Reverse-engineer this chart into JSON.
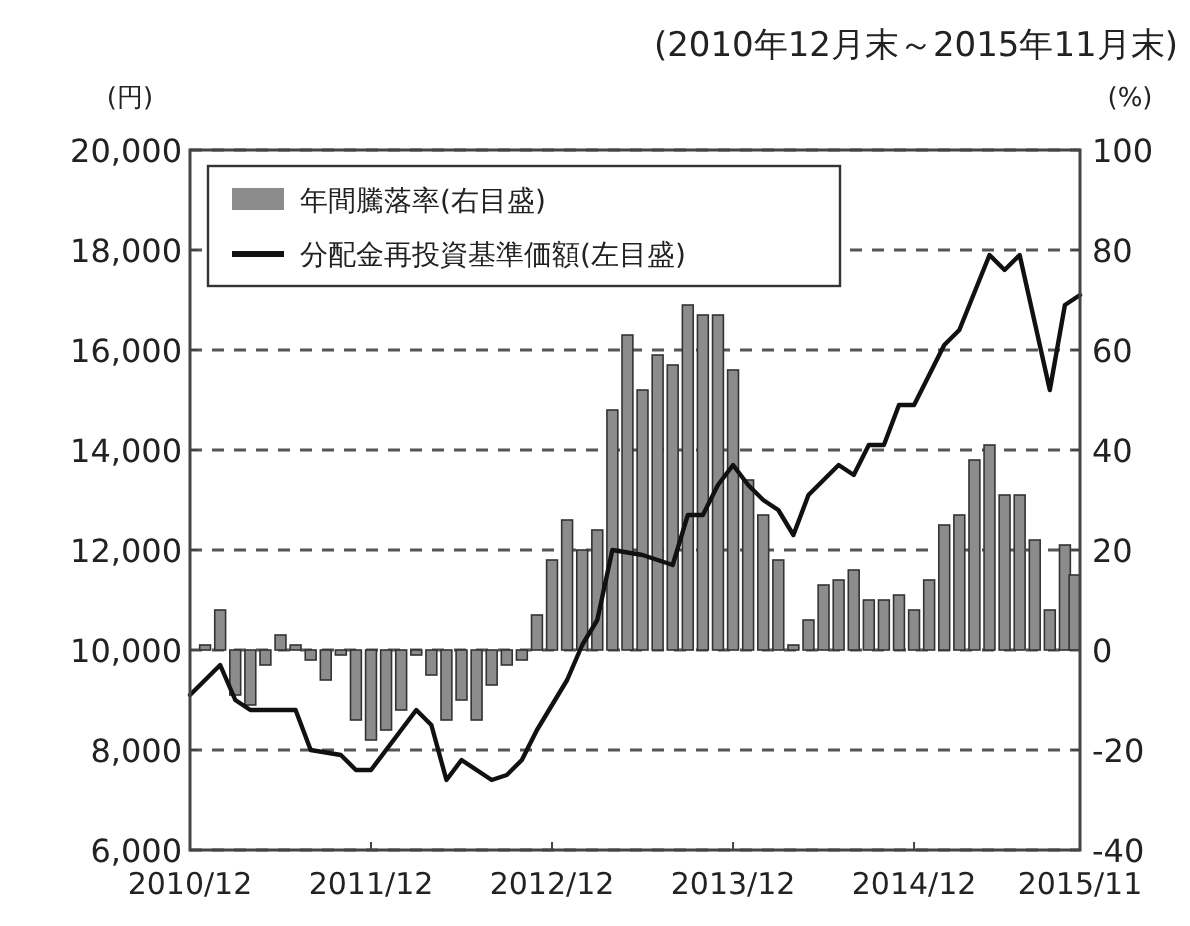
{
  "chart_data": {
    "type": "bar",
    "title": "(2010年12月末～2015年11月末)",
    "ylabel": "(円)",
    "y2label": "(%)",
    "xlim": [
      "2010-12",
      "2015-11"
    ],
    "xticks": [
      {
        "value": "2010-12",
        "label": "2010/12"
      },
      {
        "value": "2011-12",
        "label": "2011/12"
      },
      {
        "value": "2012-12",
        "label": "2012/12"
      },
      {
        "value": "2013-12",
        "label": "2013/12"
      },
      {
        "value": "2014-12",
        "label": "2014/12"
      },
      {
        "value": "2015-11",
        "label": "2015/11"
      }
    ],
    "ylim": [
      6000,
      20000
    ],
    "yticks": [
      {
        "value": 6000,
        "label": "6,000"
      },
      {
        "value": 8000,
        "label": "8,000"
      },
      {
        "value": 10000,
        "label": "10,000"
      },
      {
        "value": 12000,
        "label": "12,000"
      },
      {
        "value": 14000,
        "label": "14,000"
      },
      {
        "value": 16000,
        "label": "16,000"
      },
      {
        "value": 18000,
        "label": "18,000"
      },
      {
        "value": 20000,
        "label": "20,000"
      }
    ],
    "y2lim": [
      -40,
      100
    ],
    "y2ticks": [
      -40,
      -20,
      0,
      20,
      40,
      60,
      80,
      100
    ],
    "grid": "y",
    "legend": "top left",
    "series": [
      {
        "name": "年間騰落率(右目盛)",
        "axis": "y2",
        "color": "#8c8c8c",
        "x": [
          "2010-12",
          "2011-01",
          "2011-02",
          "2011-03",
          "2011-04",
          "2011-05",
          "2011-06",
          "2011-07",
          "2011-08",
          "2011-09",
          "2011-10",
          "2011-11",
          "2011-12",
          "2012-01",
          "2012-02",
          "2012-03",
          "2012-04",
          "2012-05",
          "2012-06",
          "2012-07",
          "2012-08",
          "2012-09",
          "2012-10",
          "2012-11",
          "2012-12",
          "2013-01",
          "2013-02",
          "2013-03",
          "2013-04",
          "2013-05",
          "2013-06",
          "2013-07",
          "2013-08",
          "2013-09",
          "2013-10",
          "2013-11",
          "2013-12",
          "2014-01",
          "2014-02",
          "2014-03",
          "2014-04",
          "2014-05",
          "2014-06",
          "2014-07",
          "2014-08",
          "2014-09",
          "2014-10",
          "2014-11",
          "2014-12",
          "2015-01",
          "2015-02",
          "2015-03",
          "2015-04",
          "2015-05",
          "2015-06",
          "2015-07",
          "2015-08",
          "2015-09",
          "2015-10",
          "2015-11"
        ],
        "values": [
          0,
          1,
          8,
          -9,
          -11,
          -3,
          3,
          1,
          -2,
          -6,
          -1,
          -14,
          -18,
          -16,
          -12,
          -1,
          -5,
          -14,
          -10,
          -14,
          -7,
          -3,
          -2,
          7,
          18,
          26,
          20,
          24,
          48,
          63,
          52,
          59,
          57,
          69,
          67,
          67,
          56,
          34,
          27,
          18,
          1,
          6,
          13,
          14,
          16,
          10,
          10,
          11,
          8,
          14,
          25,
          27,
          38,
          41,
          31,
          31,
          22,
          8,
          21,
          15
        ]
      },
      {
        "name": "分配金再投資基準価額(左目盛)",
        "type": "line",
        "axis": "y",
        "color": "#111111",
        "x": [
          "2010-12",
          "2011-02",
          "2011-03",
          "2011-04",
          "2011-06",
          "2011-07",
          "2011-08",
          "2011-10",
          "2011-11",
          "2011-12",
          "2012-02",
          "2012-03",
          "2012-04",
          "2012-05",
          "2012-06",
          "2012-08",
          "2012-09",
          "2012-10",
          "2012-11",
          "2013-01",
          "2013-02",
          "2013-03",
          "2013-04",
          "2013-06",
          "2013-07",
          "2013-08",
          "2013-09",
          "2013-10",
          "2013-11",
          "2013-12",
          "2014-01",
          "2014-02",
          "2014-03",
          "2014-04",
          "2014-05",
          "2014-07",
          "2014-08",
          "2014-09",
          "2014-10",
          "2014-11",
          "2014-12",
          "2015-02",
          "2015-03",
          "2015-05",
          "2015-06",
          "2015-07",
          "2015-09",
          "2015-10",
          "2015-11"
        ],
        "values": [
          9100,
          9700,
          9000,
          8800,
          8800,
          8800,
          8000,
          7900,
          7600,
          7600,
          8400,
          8800,
          8500,
          7400,
          7800,
          7400,
          7500,
          7800,
          8400,
          9400,
          10100,
          10600,
          12000,
          11900,
          11800,
          11700,
          12700,
          12700,
          13300,
          13700,
          13300,
          13000,
          12800,
          12300,
          13100,
          13700,
          13500,
          14100,
          14100,
          14900,
          14900,
          16100,
          16400,
          17900,
          17600,
          17900,
          15200,
          16900,
          17100
        ]
      }
    ]
  }
}
